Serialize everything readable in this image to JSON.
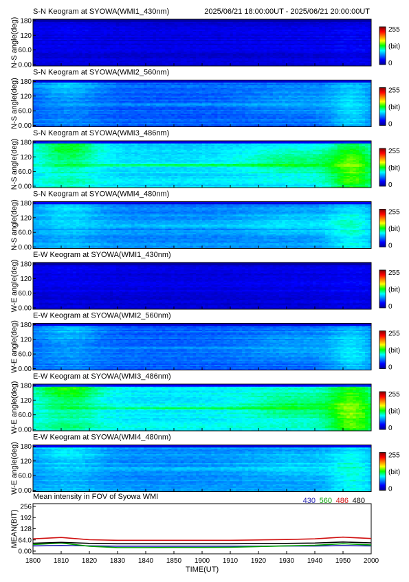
{
  "header": {
    "time_range": "2025/06/21 18:00:00UT - 2025/06/21 20:00:00UT"
  },
  "colorbar": {
    "max_label": "255",
    "unit_label": "(bit)",
    "min_label": "0"
  },
  "keograms": [
    {
      "title": "S-N Keogram at SYOWA(WMI1_430nm)",
      "ylabel": "N-S angle(deg)",
      "channel": "430",
      "base": 0.09,
      "level": "dim"
    },
    {
      "title": "S-N Keogram at SYOWA(WMI2_560nm)",
      "ylabel": "N-S angle(deg)",
      "channel": "560",
      "base": 0.22,
      "level": "mid"
    },
    {
      "title": "S-N Keogram at SYOWA(WMI3_486nm)",
      "ylabel": "N-S angle(deg)",
      "channel": "486",
      "base": 0.34,
      "level": "bright"
    },
    {
      "title": "S-N Keogram at SYOWA(WMI4_480nm)",
      "ylabel": "N-S angle(deg)",
      "channel": "480",
      "base": 0.26,
      "level": "mid"
    },
    {
      "title": "E-W Keogram at SYOWA(WMI1_430nm)",
      "ylabel": "W-E angle(deg)",
      "channel": "430",
      "base": 0.09,
      "level": "dim"
    },
    {
      "title": "E-W Keogram at SYOWA(WMI2_560nm)",
      "ylabel": "W-E angle(deg)",
      "channel": "560",
      "base": 0.22,
      "level": "mid"
    },
    {
      "title": "E-W Keogram at SYOWA(WMI3_486nm)",
      "ylabel": "W-E angle(deg)",
      "channel": "486",
      "base": 0.36,
      "level": "bright"
    },
    {
      "title": "E-W Keogram at SYOWA(WMI4_480nm)",
      "ylabel": "W-E angle(deg)",
      "channel": "480",
      "base": 0.27,
      "level": "mid"
    }
  ],
  "keogram_yticks": [
    "180",
    "120",
    "60.0",
    "0.00"
  ],
  "chart_data": {
    "type": "line",
    "title": "Mean intensity in FOV of Syowa WMI",
    "xlabel": "TIME(UT)",
    "ylabel": "MEAN(BIT)",
    "xlim": [
      1800,
      2000
    ],
    "ylim": [
      0,
      256
    ],
    "xtick_labels": [
      "1800",
      "1810",
      "1820",
      "1830",
      "1840",
      "1850",
      "1900",
      "1910",
      "1920",
      "1930",
      "1940",
      "1950",
      "2000"
    ],
    "ytick_labels": [
      "256",
      "192",
      "128",
      "64.0",
      "0.00"
    ],
    "ytick_values": [
      256,
      192,
      128,
      64,
      0
    ],
    "x_minutes": [
      0,
      10,
      20,
      30,
      40,
      50,
      60,
      70,
      80,
      90,
      100,
      110,
      120
    ],
    "series": [
      {
        "name": "430",
        "color": "#1f1fb0",
        "values": [
          30,
          32,
          30,
          28,
          28,
          28,
          28,
          28,
          28,
          29,
          29,
          31,
          30
        ]
      },
      {
        "name": "560",
        "color": "#00a000",
        "values": [
          38,
          46,
          28,
          20,
          20,
          21,
          21,
          22,
          26,
          30,
          33,
          42,
          35
        ]
      },
      {
        "name": "486",
        "color": "#d01010",
        "values": [
          70,
          78,
          65,
          62,
          62,
          62,
          62,
          62,
          64,
          66,
          70,
          80,
          72
        ]
      },
      {
        "name": "480",
        "color": "#000000",
        "values": [
          45,
          50,
          44,
          42,
          42,
          42,
          42,
          42,
          43,
          44,
          46,
          52,
          47
        ]
      }
    ]
  }
}
